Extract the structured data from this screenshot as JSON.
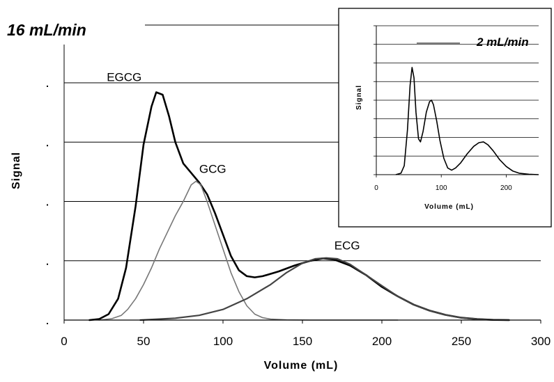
{
  "chart_data": [
    {
      "type": "line",
      "annotation": "16 mL/min",
      "xlabel": "Volume (mL)",
      "ylabel": "Signal",
      "xlim": [
        0,
        300
      ],
      "ylim": [
        0,
        1.0
      ],
      "x_ticks": [
        "0",
        "50",
        "100",
        "150",
        "200",
        "250",
        "300"
      ],
      "y_gridlines": [
        0.25,
        0.5,
        0.75,
        1.0
      ],
      "grid": true,
      "series": [
        {
          "name": "EGCG",
          "stroke": "#000000",
          "points": [
            [
              16,
              0
            ],
            [
              22,
              0.004
            ],
            [
              28,
              0.025
            ],
            [
              34,
              0.09
            ],
            [
              39,
              0.22
            ],
            [
              45,
              0.48
            ],
            [
              50,
              0.74
            ],
            [
              55,
              0.9
            ],
            [
              58,
              0.96
            ],
            [
              62,
              0.95
            ],
            [
              66,
              0.86
            ],
            [
              70,
              0.75
            ],
            [
              75,
              0.66
            ],
            [
              80,
              0.62
            ],
            [
              85,
              0.58
            ],
            [
              90,
              0.53
            ],
            [
              95,
              0.45
            ],
            [
              100,
              0.36
            ],
            [
              105,
              0.27
            ],
            [
              110,
              0.21
            ],
            [
              115,
              0.185
            ],
            [
              120,
              0.18
            ],
            [
              125,
              0.185
            ],
            [
              135,
              0.205
            ],
            [
              145,
              0.23
            ],
            [
              155,
              0.25
            ],
            [
              163,
              0.26
            ],
            [
              170,
              0.255
            ],
            [
              180,
              0.23
            ],
            [
              190,
              0.19
            ],
            [
              200,
              0.14
            ],
            [
              210,
              0.1
            ],
            [
              220,
              0.065
            ],
            [
              230,
              0.04
            ],
            [
              240,
              0.022
            ],
            [
              250,
              0.01
            ],
            [
              260,
              0.004
            ],
            [
              270,
              0.001
            ],
            [
              280,
              0
            ]
          ]
        },
        {
          "name": "GCG",
          "stroke": "#777777",
          "points": [
            [
              22,
              0
            ],
            [
              30,
              0.006
            ],
            [
              36,
              0.02
            ],
            [
              40,
              0.045
            ],
            [
              45,
              0.09
            ],
            [
              50,
              0.15
            ],
            [
              55,
              0.22
            ],
            [
              60,
              0.3
            ],
            [
              65,
              0.37
            ],
            [
              70,
              0.44
            ],
            [
              75,
              0.5
            ],
            [
              80,
              0.57
            ],
            [
              83,
              0.585
            ],
            [
              86,
              0.57
            ],
            [
              90,
              0.5
            ],
            [
              95,
              0.4
            ],
            [
              100,
              0.3
            ],
            [
              105,
              0.2
            ],
            [
              110,
              0.12
            ],
            [
              115,
              0.06
            ],
            [
              120,
              0.025
            ],
            [
              125,
              0.01
            ],
            [
              130,
              0.004
            ],
            [
              140,
              0.001
            ],
            [
              155,
              0
            ],
            [
              210,
              0
            ]
          ]
        },
        {
          "name": "ECG",
          "stroke": "#444444",
          "points": [
            [
              48,
              0
            ],
            [
              70,
              0.008
            ],
            [
              85,
              0.02
            ],
            [
              100,
              0.045
            ],
            [
              115,
              0.09
            ],
            [
              130,
              0.15
            ],
            [
              140,
              0.2
            ],
            [
              150,
              0.24
            ],
            [
              158,
              0.258
            ],
            [
              165,
              0.262
            ],
            [
              172,
              0.258
            ],
            [
              180,
              0.235
            ],
            [
              190,
              0.19
            ],
            [
              200,
              0.145
            ],
            [
              210,
              0.1
            ],
            [
              220,
              0.065
            ],
            [
              230,
              0.04
            ],
            [
              240,
              0.022
            ],
            [
              250,
              0.01
            ],
            [
              260,
              0.004
            ],
            [
              270,
              0.001
            ],
            [
              280,
              0
            ]
          ]
        }
      ],
      "peak_labels": [
        "EGCG",
        "GCG",
        "ECG"
      ]
    },
    {
      "type": "line",
      "annotation": "2 mL/min",
      "xlabel": "Volume (mL)",
      "ylabel": "Signal",
      "xlim": [
        0,
        250
      ],
      "ylim": [
        0,
        1.0
      ],
      "x_ticks": [
        "0",
        "100",
        "200"
      ],
      "y_gridlines": [
        0.125,
        0.25,
        0.375,
        0.5,
        0.625,
        0.75,
        0.875,
        1.0
      ],
      "grid": true,
      "series": [
        {
          "stroke": "#000000",
          "points": [
            [
              30,
              0
            ],
            [
              38,
              0.01
            ],
            [
              43,
              0.06
            ],
            [
              48,
              0.3
            ],
            [
              52,
              0.6
            ],
            [
              55,
              0.72
            ],
            [
              58,
              0.65
            ],
            [
              61,
              0.42
            ],
            [
              65,
              0.24
            ],
            [
              68,
              0.22
            ],
            [
              72,
              0.29
            ],
            [
              77,
              0.42
            ],
            [
              82,
              0.49
            ],
            [
              85,
              0.5
            ],
            [
              88,
              0.47
            ],
            [
              93,
              0.36
            ],
            [
              98,
              0.23
            ],
            [
              104,
              0.11
            ],
            [
              110,
              0.045
            ],
            [
              116,
              0.03
            ],
            [
              122,
              0.045
            ],
            [
              130,
              0.08
            ],
            [
              140,
              0.14
            ],
            [
              150,
              0.19
            ],
            [
              158,
              0.215
            ],
            [
              165,
              0.22
            ],
            [
              172,
              0.2
            ],
            [
              180,
              0.16
            ],
            [
              190,
              0.1
            ],
            [
              200,
              0.055
            ],
            [
              210,
              0.025
            ],
            [
              220,
              0.01
            ],
            [
              235,
              0.003
            ],
            [
              250,
              0
            ]
          ]
        }
      ]
    }
  ]
}
